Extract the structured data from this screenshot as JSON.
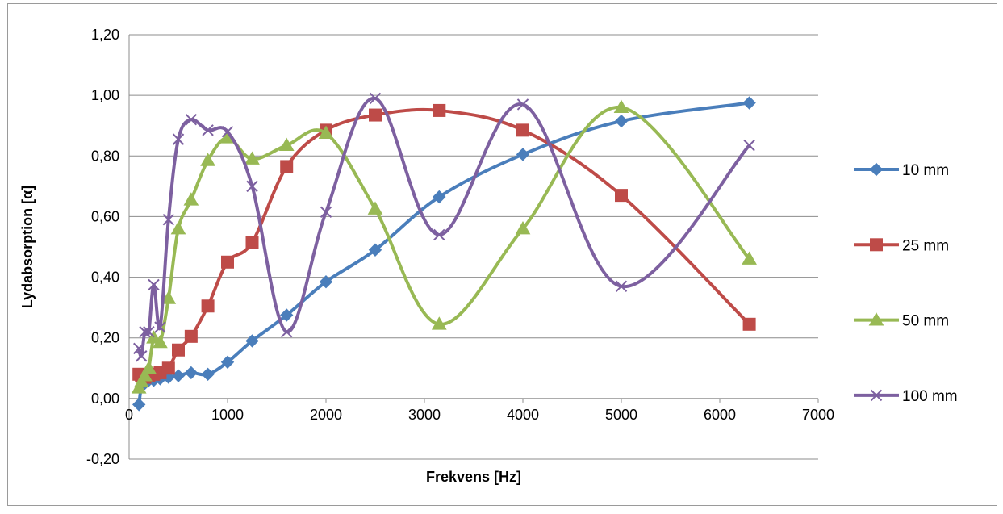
{
  "chart_data": {
    "type": "scatter",
    "title": "",
    "xlabel": "Frekvens [Hz]",
    "ylabel": "Lydabsorption [α]",
    "xlim": [
      0,
      7000
    ],
    "ylim": [
      -0.2,
      1.2
    ],
    "x_ticks": [
      0,
      1000,
      2000,
      3000,
      4000,
      5000,
      6000,
      7000
    ],
    "x_tick_labels": [
      "0",
      "1000",
      "2000",
      "3000",
      "4000",
      "5000",
      "6000",
      "7000"
    ],
    "y_ticks": [
      -0.2,
      0,
      0.2,
      0.4,
      0.6,
      0.8,
      1.0,
      1.2
    ],
    "y_tick_labels": [
      "-0,20",
      "0,00",
      "0,20",
      "0,40",
      "0,60",
      "0,80",
      "1,00",
      "1,20"
    ],
    "grid": "horizontal",
    "legend_position": "right",
    "series": [
      {
        "name": "10 mm",
        "color": "#4a7ebb",
        "marker": "diamond",
        "x": [
          100,
          125,
          160,
          200,
          250,
          315,
          400,
          500,
          630,
          800,
          1000,
          1250,
          1600,
          2000,
          2500,
          3150,
          4000,
          5000,
          6300
        ],
        "y": [
          -0.02,
          0.04,
          0.05,
          0.06,
          0.06,
          0.065,
          0.07,
          0.075,
          0.085,
          0.08,
          0.12,
          0.19,
          0.275,
          0.385,
          0.49,
          0.665,
          0.805,
          0.915,
          0.975
        ]
      },
      {
        "name": "25 mm",
        "color": "#be4b48",
        "marker": "square",
        "x": [
          100,
          125,
          160,
          200,
          250,
          315,
          400,
          500,
          630,
          800,
          1000,
          1250,
          1600,
          2000,
          2500,
          3150,
          4000,
          5000,
          6300
        ],
        "y": [
          0.08,
          0.075,
          0.07,
          0.075,
          0.08,
          0.085,
          0.1,
          0.16,
          0.205,
          0.305,
          0.45,
          0.515,
          0.765,
          0.885,
          0.935,
          0.95,
          0.885,
          0.67,
          0.245
        ]
      },
      {
        "name": "50 mm",
        "color": "#98b954",
        "marker": "triangle",
        "x": [
          100,
          125,
          160,
          200,
          250,
          315,
          400,
          500,
          630,
          800,
          1000,
          1250,
          1600,
          2000,
          2500,
          3150,
          4000,
          5000,
          6300
        ],
        "y": [
          0.035,
          0.055,
          0.075,
          0.1,
          0.2,
          0.185,
          0.33,
          0.56,
          0.655,
          0.785,
          0.86,
          0.79,
          0.835,
          0.875,
          0.625,
          0.245,
          0.56,
          0.96,
          0.46
        ]
      },
      {
        "name": "100 mm",
        "color": "#7d60a0",
        "marker": "x",
        "x": [
          100,
          125,
          160,
          200,
          250,
          315,
          400,
          500,
          630,
          800,
          1000,
          1250,
          1600,
          2000,
          2500,
          3150,
          4000,
          5000,
          6300
        ],
        "y": [
          0.165,
          0.14,
          0.22,
          0.22,
          0.375,
          0.235,
          0.59,
          0.855,
          0.92,
          0.885,
          0.88,
          0.7,
          0.22,
          0.615,
          0.99,
          0.54,
          0.97,
          0.37,
          0.835
        ]
      }
    ]
  }
}
